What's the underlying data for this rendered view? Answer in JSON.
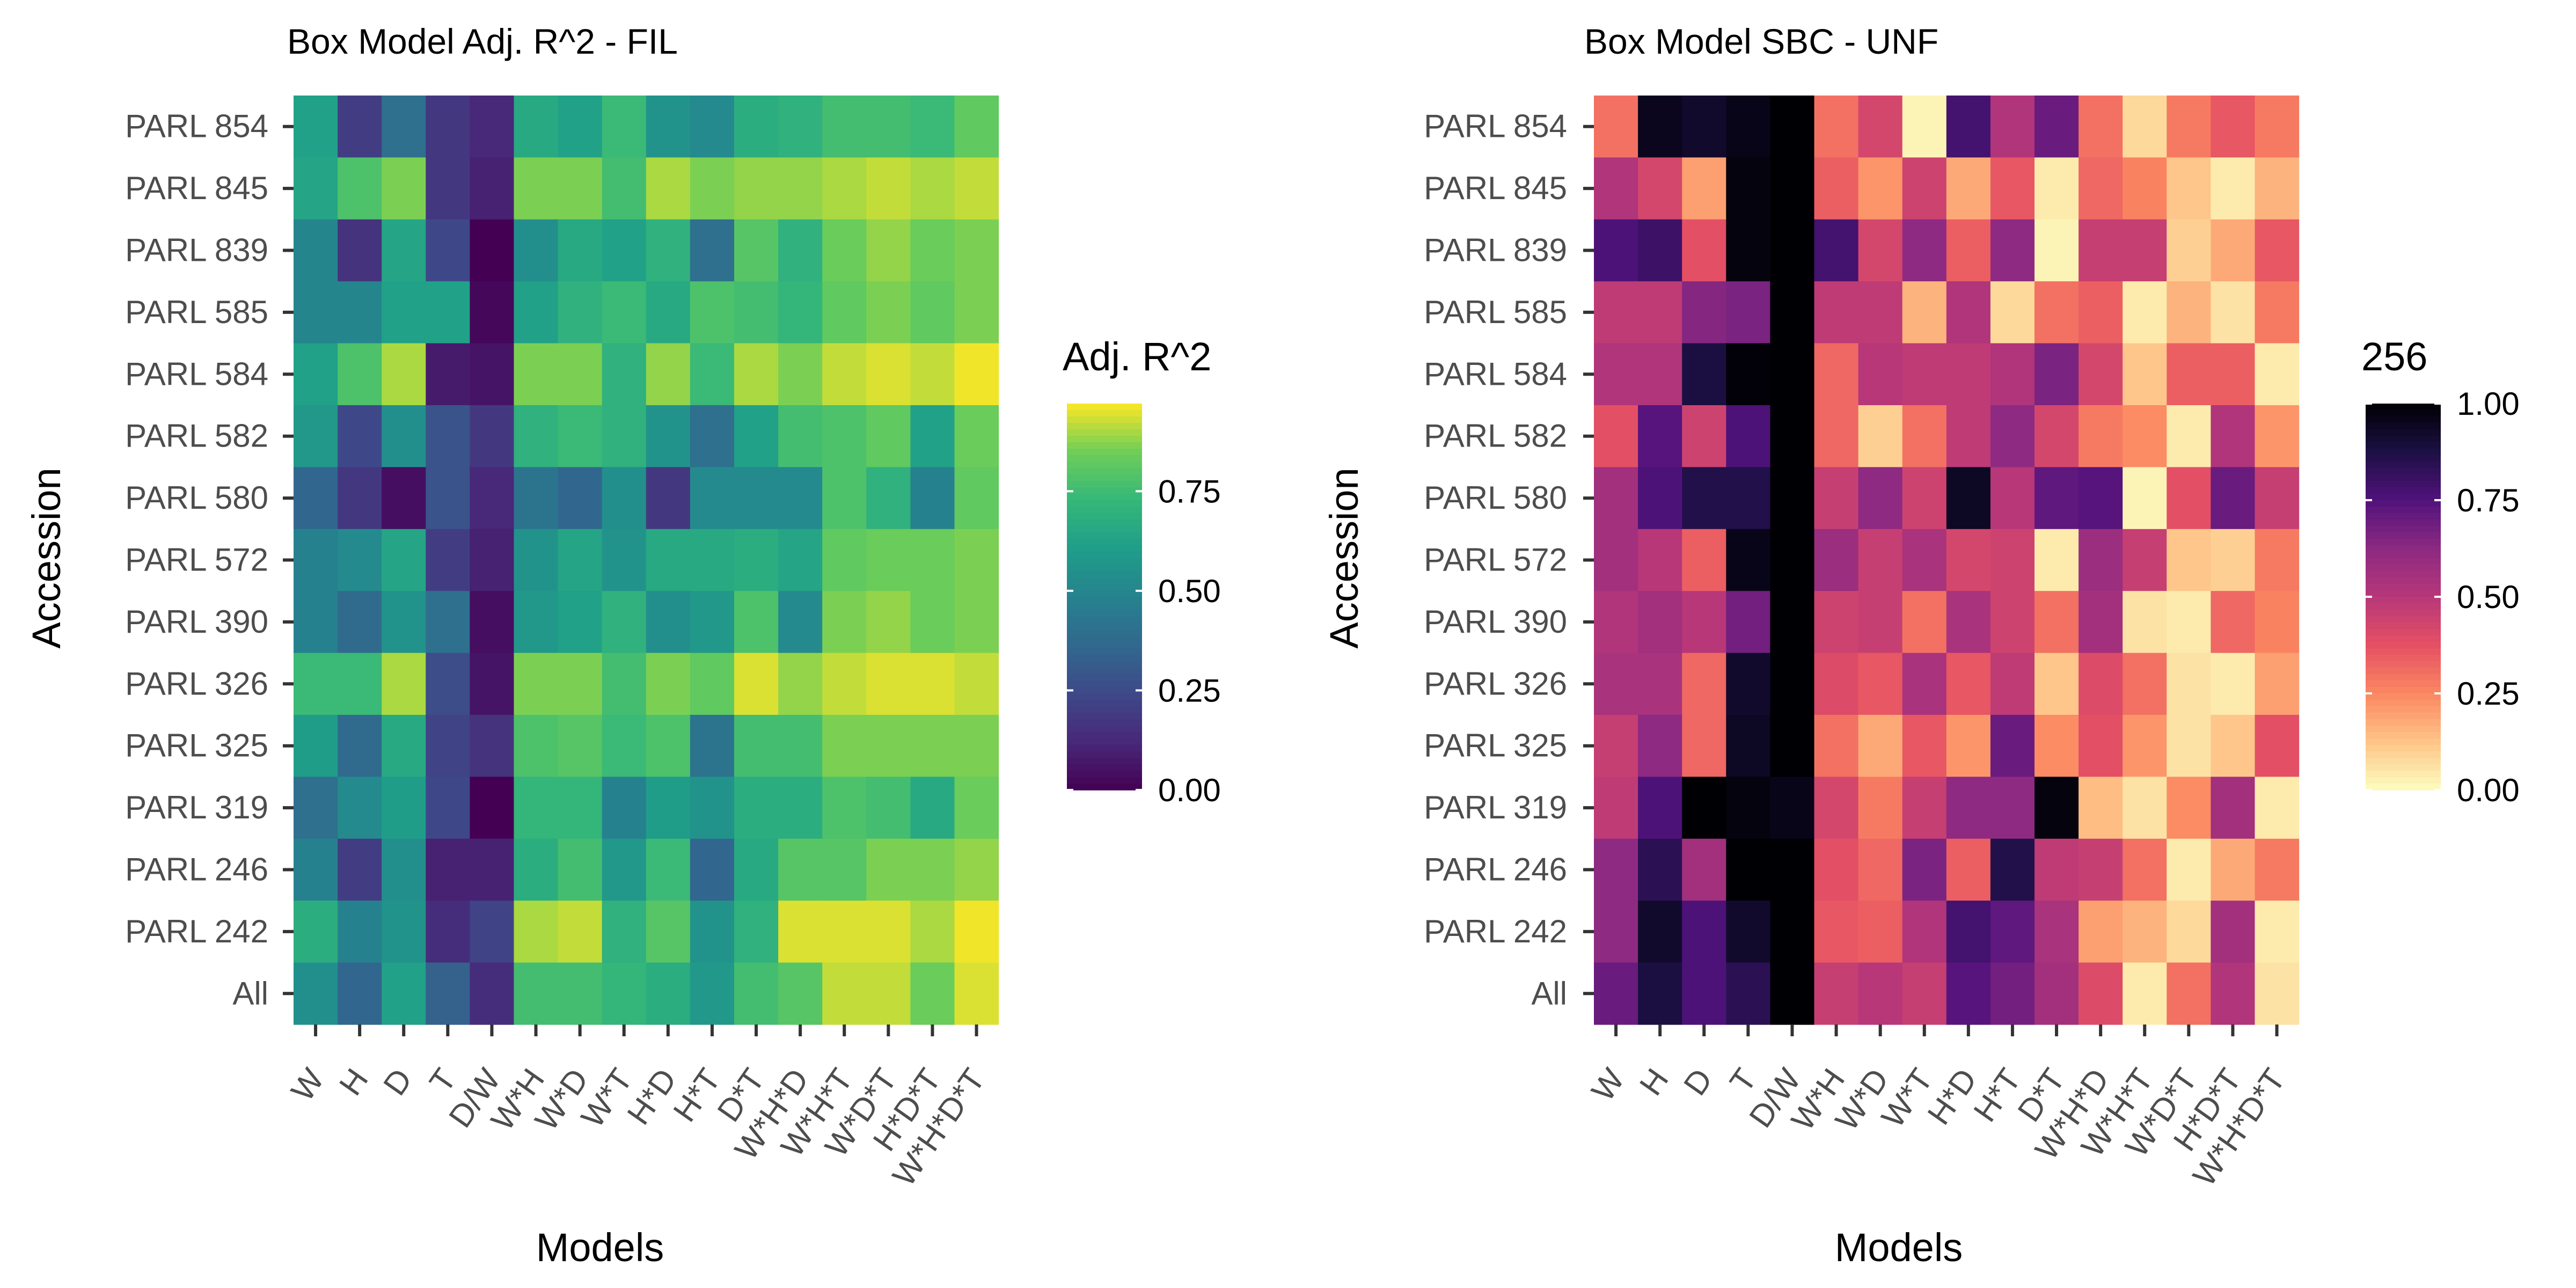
{
  "chart_data": [
    {
      "type": "heatmap",
      "title": "Box Model Adj. R^2 - FIL",
      "xlabel": "Models",
      "ylabel": "Accession",
      "x": [
        "W",
        "H",
        "D",
        "T",
        "D/W",
        "W*H",
        "W*D",
        "W*T",
        "H*D",
        "H*T",
        "D*T",
        "W*H*D",
        "W*H*T",
        "W*D*T",
        "H*D*T",
        "W*H*D*T"
      ],
      "y": [
        "PARL 854",
        "PARL 845",
        "PARL 839",
        "PARL 585",
        "PARL 584",
        "PARL 582",
        "PARL 580",
        "PARL 572",
        "PARL 390",
        "PARL 326",
        "PARL 325",
        "PARL 319",
        "PARL 246",
        "PARL 242",
        "All"
      ],
      "colormap": "viridis",
      "legend": {
        "title": "Adj. R^2",
        "position": "right",
        "ticks": [
          "0.00",
          "0.25",
          "0.50",
          "0.75"
        ],
        "tick_values": [
          0,
          0.25,
          0.5,
          0.75
        ],
        "range": [
          0,
          0.97
        ]
      },
      "values": [
        [
          0.62,
          0.2,
          0.4,
          0.18,
          0.12,
          0.66,
          0.62,
          0.74,
          0.56,
          0.52,
          0.68,
          0.7,
          0.76,
          0.76,
          0.74,
          0.82
        ],
        [
          0.64,
          0.78,
          0.86,
          0.18,
          0.1,
          0.86,
          0.86,
          0.76,
          0.9,
          0.86,
          0.88,
          0.88,
          0.9,
          0.92,
          0.9,
          0.92
        ],
        [
          0.5,
          0.16,
          0.64,
          0.24,
          0.0,
          0.54,
          0.66,
          0.62,
          0.7,
          0.4,
          0.8,
          0.7,
          0.84,
          0.88,
          0.84,
          0.86
        ],
        [
          0.5,
          0.5,
          0.62,
          0.62,
          0.02,
          0.62,
          0.7,
          0.74,
          0.66,
          0.78,
          0.76,
          0.72,
          0.82,
          0.86,
          0.82,
          0.86
        ],
        [
          0.62,
          0.78,
          0.9,
          0.08,
          0.06,
          0.86,
          0.86,
          0.7,
          0.88,
          0.74,
          0.9,
          0.86,
          0.92,
          0.94,
          0.92,
          0.96
        ],
        [
          0.58,
          0.24,
          0.54,
          0.28,
          0.18,
          0.7,
          0.74,
          0.7,
          0.56,
          0.4,
          0.62,
          0.76,
          0.78,
          0.82,
          0.62,
          0.84
        ],
        [
          0.36,
          0.18,
          0.04,
          0.28,
          0.12,
          0.42,
          0.36,
          0.54,
          0.18,
          0.52,
          0.52,
          0.52,
          0.78,
          0.7,
          0.48,
          0.82
        ],
        [
          0.48,
          0.52,
          0.64,
          0.2,
          0.1,
          0.56,
          0.64,
          0.56,
          0.66,
          0.66,
          0.68,
          0.64,
          0.82,
          0.84,
          0.84,
          0.86
        ],
        [
          0.48,
          0.38,
          0.56,
          0.4,
          0.04,
          0.58,
          0.62,
          0.7,
          0.54,
          0.58,
          0.78,
          0.52,
          0.86,
          0.88,
          0.84,
          0.86
        ],
        [
          0.74,
          0.74,
          0.9,
          0.26,
          0.06,
          0.86,
          0.86,
          0.76,
          0.86,
          0.82,
          0.94,
          0.88,
          0.92,
          0.94,
          0.94,
          0.92
        ],
        [
          0.6,
          0.38,
          0.66,
          0.22,
          0.16,
          0.78,
          0.8,
          0.74,
          0.78,
          0.42,
          0.76,
          0.76,
          0.86,
          0.86,
          0.86,
          0.86
        ],
        [
          0.4,
          0.52,
          0.6,
          0.24,
          0.0,
          0.72,
          0.72,
          0.48,
          0.6,
          0.56,
          0.68,
          0.68,
          0.78,
          0.76,
          0.66,
          0.84
        ],
        [
          0.48,
          0.2,
          0.54,
          0.1,
          0.1,
          0.68,
          0.76,
          0.58,
          0.74,
          0.36,
          0.66,
          0.8,
          0.8,
          0.86,
          0.86,
          0.88
        ],
        [
          0.68,
          0.48,
          0.56,
          0.14,
          0.22,
          0.9,
          0.92,
          0.7,
          0.8,
          0.56,
          0.7,
          0.94,
          0.94,
          0.94,
          0.9,
          0.96
        ],
        [
          0.54,
          0.36,
          0.62,
          0.34,
          0.14,
          0.76,
          0.76,
          0.72,
          0.68,
          0.58,
          0.76,
          0.8,
          0.92,
          0.92,
          0.84,
          0.94
        ]
      ]
    },
    {
      "type": "heatmap",
      "title": "Box Model SBC - UNF",
      "xlabel": "Models",
      "ylabel": "Accession",
      "x": [
        "W",
        "H",
        "D",
        "T",
        "D/W",
        "W*H",
        "W*D",
        "W*T",
        "H*D",
        "H*T",
        "D*T",
        "W*H*D",
        "W*H*T",
        "W*D*T",
        "H*D*T",
        "W*H*D*T"
      ],
      "y": [
        "PARL 854",
        "PARL 845",
        "PARL 839",
        "PARL 585",
        "PARL 584",
        "PARL 582",
        "PARL 580",
        "PARL 572",
        "PARL 390",
        "PARL 326",
        "PARL 325",
        "PARL 319",
        "PARL 246",
        "PARL 242",
        "All"
      ],
      "colormap": "magma_reversed",
      "legend": {
        "title": "256",
        "position": "right",
        "ticks": [
          "0.00",
          "0.25",
          "0.50",
          "0.75",
          "1.00"
        ],
        "tick_values": [
          0,
          0.25,
          0.5,
          0.75,
          1.0
        ],
        "range": [
          0,
          1.0
        ]
      },
      "values": [
        [
          0.3,
          0.95,
          0.92,
          0.96,
          1.0,
          0.3,
          0.42,
          0.02,
          0.78,
          0.52,
          0.7,
          0.3,
          0.08,
          0.28,
          0.36,
          0.28
        ],
        [
          0.52,
          0.42,
          0.2,
          0.98,
          1.0,
          0.34,
          0.22,
          0.44,
          0.18,
          0.36,
          0.04,
          0.32,
          0.26,
          0.12,
          0.04,
          0.16
        ],
        [
          0.76,
          0.8,
          0.38,
          0.98,
          1.0,
          0.78,
          0.42,
          0.62,
          0.34,
          0.62,
          0.02,
          0.46,
          0.46,
          0.1,
          0.18,
          0.36
        ],
        [
          0.48,
          0.48,
          0.64,
          0.66,
          1.0,
          0.48,
          0.48,
          0.16,
          0.52,
          0.08,
          0.3,
          0.34,
          0.04,
          0.16,
          0.06,
          0.28
        ],
        [
          0.52,
          0.52,
          0.88,
          0.99,
          1.0,
          0.32,
          0.5,
          0.48,
          0.48,
          0.52,
          0.66,
          0.42,
          0.12,
          0.34,
          0.34,
          0.04
        ],
        [
          0.38,
          0.74,
          0.44,
          0.76,
          1.0,
          0.32,
          0.1,
          0.3,
          0.48,
          0.62,
          0.42,
          0.28,
          0.24,
          0.04,
          0.52,
          0.22
        ],
        [
          0.56,
          0.76,
          0.86,
          0.86,
          1.0,
          0.46,
          0.62,
          0.44,
          0.94,
          0.5,
          0.72,
          0.74,
          0.02,
          0.38,
          0.7,
          0.46
        ],
        [
          0.56,
          0.5,
          0.34,
          0.96,
          1.0,
          0.58,
          0.46,
          0.54,
          0.42,
          0.44,
          0.04,
          0.58,
          0.46,
          0.12,
          0.1,
          0.28
        ],
        [
          0.52,
          0.56,
          0.5,
          0.68,
          1.0,
          0.44,
          0.46,
          0.3,
          0.54,
          0.44,
          0.3,
          0.56,
          0.06,
          0.04,
          0.32,
          0.26
        ],
        [
          0.54,
          0.54,
          0.32,
          0.92,
          1.0,
          0.4,
          0.36,
          0.54,
          0.36,
          0.48,
          0.12,
          0.4,
          0.3,
          0.06,
          0.04,
          0.2
        ],
        [
          0.46,
          0.62,
          0.32,
          0.94,
          1.0,
          0.3,
          0.18,
          0.36,
          0.22,
          0.7,
          0.24,
          0.38,
          0.22,
          0.06,
          0.12,
          0.38
        ],
        [
          0.48,
          0.76,
          1.0,
          0.98,
          0.96,
          0.42,
          0.28,
          0.46,
          0.62,
          0.62,
          0.98,
          0.14,
          0.06,
          0.24,
          0.56,
          0.04
        ],
        [
          0.62,
          0.84,
          0.56,
          1.0,
          1.0,
          0.38,
          0.32,
          0.66,
          0.34,
          0.86,
          0.48,
          0.46,
          0.3,
          0.04,
          0.18,
          0.28
        ],
        [
          0.62,
          0.92,
          0.76,
          0.92,
          1.0,
          0.36,
          0.34,
          0.52,
          0.78,
          0.72,
          0.54,
          0.2,
          0.16,
          0.08,
          0.56,
          0.04
        ],
        [
          0.7,
          0.88,
          0.76,
          0.84,
          1.0,
          0.46,
          0.5,
          0.46,
          0.74,
          0.68,
          0.56,
          0.4,
          0.04,
          0.3,
          0.52,
          0.06
        ]
      ]
    }
  ]
}
